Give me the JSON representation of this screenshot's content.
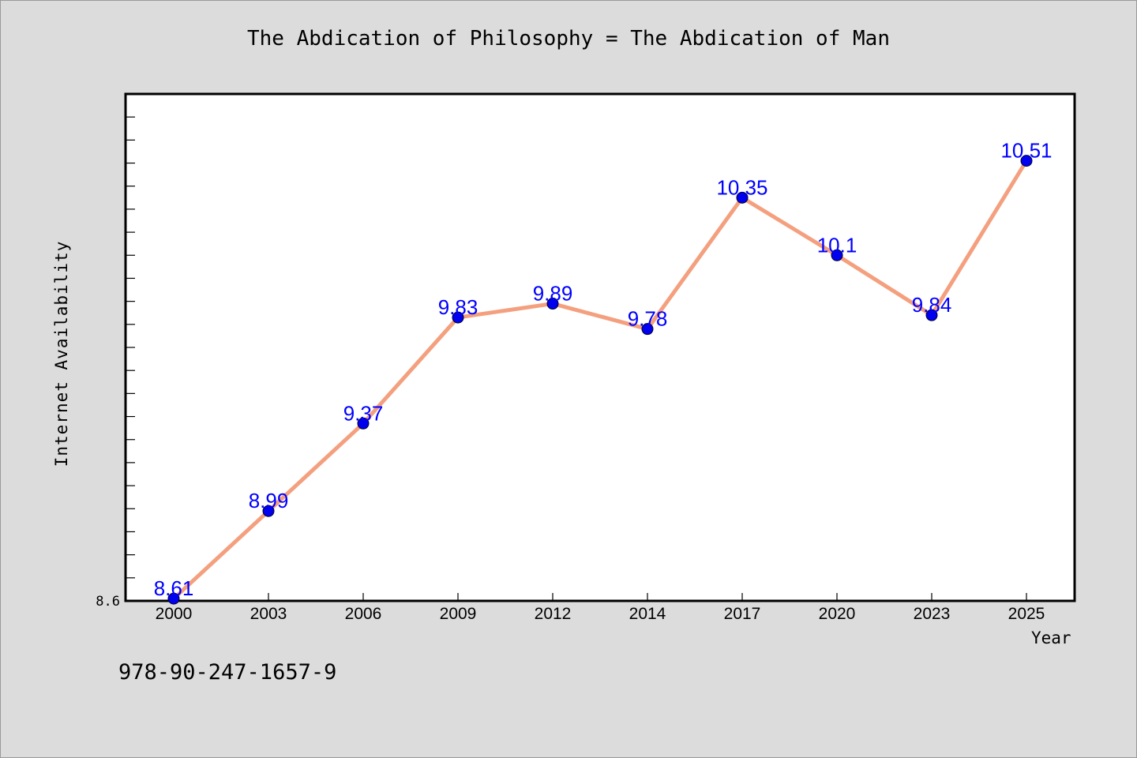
{
  "chart_data": {
    "type": "line",
    "title": "The Abdication of Philosophy = The Abdication of Man",
    "xlabel": "Year",
    "ylabel": "Internet Availability",
    "categories": [
      "2000",
      "2003",
      "2006",
      "2009",
      "2012",
      "2014",
      "2017",
      "2020",
      "2023",
      "2025"
    ],
    "series": [
      {
        "values": [
          8.61,
          8.99,
          9.37,
          9.83,
          9.89,
          9.78,
          10.35,
          10.1,
          9.84,
          10.51
        ],
        "labels": [
          "8.61",
          "8.99",
          "9.37",
          "9.83",
          "9.89",
          "9.78",
          "10.35",
          "10.1",
          "9.84",
          "10.51"
        ],
        "line_color": "#f4a07f",
        "marker_color": "#0000ee",
        "label_color": "#0000ff"
      }
    ],
    "ylim": [
      8.6,
      10.8
    ],
    "y_tick_labels": [
      "8.6"
    ],
    "grid": false,
    "legend": "none"
  },
  "footer": {
    "isbn": "978-90-247-1657-9"
  }
}
